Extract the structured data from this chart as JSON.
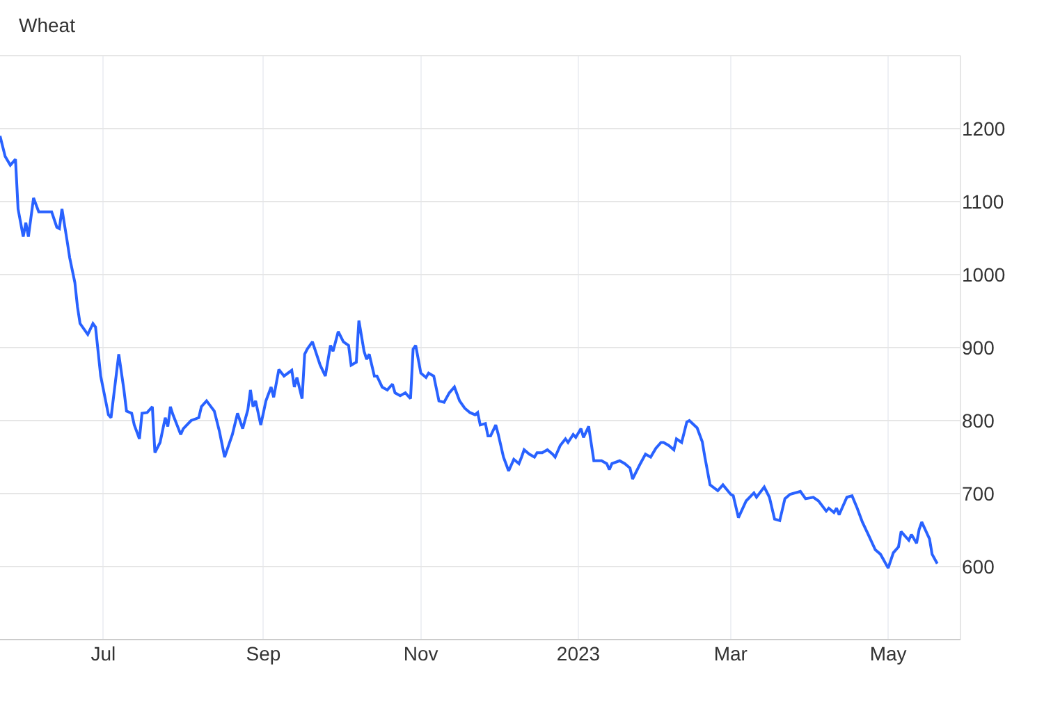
{
  "chart_data": {
    "type": "line",
    "title": "Wheat",
    "x": [
      "2022-05-22",
      "2022-05-24",
      "2022-05-26",
      "2022-05-28",
      "2022-05-29",
      "2022-05-31",
      "2022-06-01",
      "2022-06-02",
      "2022-06-04",
      "2022-06-06",
      "2022-06-11",
      "2022-06-13",
      "2022-06-14",
      "2022-06-15",
      "2022-06-17",
      "2022-06-18",
      "2022-06-20",
      "2022-06-21",
      "2022-06-22",
      "2022-06-25",
      "2022-06-27",
      "2022-06-28",
      "2022-06-30",
      "2022-07-03",
      "2022-07-04",
      "2022-07-07",
      "2022-07-09",
      "2022-07-10",
      "2022-07-12",
      "2022-07-13",
      "2022-07-15",
      "2022-07-16",
      "2022-07-18",
      "2022-07-20",
      "2022-07-21",
      "2022-07-23",
      "2022-07-25",
      "2022-07-26",
      "2022-07-27",
      "2022-07-28",
      "2022-07-31",
      "2022-08-01",
      "2022-08-04",
      "2022-08-07",
      "2022-08-08",
      "2022-08-10",
      "2022-08-13",
      "2022-08-15",
      "2022-08-17",
      "2022-08-20",
      "2022-08-22",
      "2022-08-24",
      "2022-08-26",
      "2022-08-27",
      "2022-08-28",
      "2022-08-29",
      "2022-08-31",
      "2022-09-02",
      "2022-09-04",
      "2022-09-05",
      "2022-09-07",
      "2022-09-09",
      "2022-09-12",
      "2022-09-13",
      "2022-09-14",
      "2022-09-16",
      "2022-09-17",
      "2022-09-18",
      "2022-09-20",
      "2022-09-23",
      "2022-09-25",
      "2022-09-27",
      "2022-09-28",
      "2022-09-30",
      "2022-10-02",
      "2022-10-04",
      "2022-10-05",
      "2022-10-07",
      "2022-10-08",
      "2022-10-10",
      "2022-10-11",
      "2022-10-12",
      "2022-10-14",
      "2022-10-15",
      "2022-10-17",
      "2022-10-19",
      "2022-10-21",
      "2022-10-22",
      "2022-10-24",
      "2022-10-26",
      "2022-10-28",
      "2022-10-29",
      "2022-10-30",
      "2022-11-01",
      "2022-11-03",
      "2022-11-04",
      "2022-11-06",
      "2022-11-08",
      "2022-11-10",
      "2022-11-12",
      "2022-11-13",
      "2022-11-14",
      "2022-11-16",
      "2022-11-18",
      "2022-11-20",
      "2022-11-22",
      "2022-11-23",
      "2022-11-24",
      "2022-11-26",
      "2022-11-27",
      "2022-11-28",
      "2022-11-30",
      "2022-12-01",
      "2022-12-03",
      "2022-12-05",
      "2022-12-07",
      "2022-12-09",
      "2022-12-10",
      "2022-12-11",
      "2022-12-13",
      "2022-12-15",
      "2022-12-16",
      "2022-12-18",
      "2022-12-20",
      "2022-12-22",
      "2022-12-23",
      "2022-12-25",
      "2022-12-27",
      "2022-12-28",
      "2022-12-30",
      "2022-12-31",
      "2023-01-02",
      "2023-01-03",
      "2023-01-05",
      "2023-01-07",
      "2023-01-10",
      "2023-01-12",
      "2023-01-13",
      "2023-01-14",
      "2023-01-17",
      "2023-01-19",
      "2023-01-21",
      "2023-01-22",
      "2023-01-25",
      "2023-01-27",
      "2023-01-29",
      "2023-01-31",
      "2023-02-02",
      "2023-02-03",
      "2023-02-05",
      "2023-02-07",
      "2023-02-08",
      "2023-02-10",
      "2023-02-12",
      "2023-02-13",
      "2023-02-16",
      "2023-02-18",
      "2023-02-19",
      "2023-02-21",
      "2023-02-24",
      "2023-02-26",
      "2023-03-01",
      "2023-03-02",
      "2023-03-04",
      "2023-03-07",
      "2023-03-10",
      "2023-03-11",
      "2023-03-14",
      "2023-03-16",
      "2023-03-18",
      "2023-03-20",
      "2023-03-22",
      "2023-03-24",
      "2023-03-28",
      "2023-03-30",
      "2023-04-02",
      "2023-04-04",
      "2023-04-07",
      "2023-04-08",
      "2023-04-10",
      "2023-04-11",
      "2023-04-12",
      "2023-04-15",
      "2023-04-17",
      "2023-04-19",
      "2023-04-21",
      "2023-04-23",
      "2023-04-26",
      "2023-04-28",
      "2023-05-01",
      "2023-05-03",
      "2023-05-05",
      "2023-05-06",
      "2023-05-09",
      "2023-05-10",
      "2023-05-12",
      "2023-05-13",
      "2023-05-14",
      "2023-05-17",
      "2023-05-18",
      "2023-05-20"
    ],
    "series": [
      {
        "color": "#2962ff",
        "values": [
          1190,
          1162,
          1150,
          1158,
          1090,
          1052,
          1071,
          1052,
          1105,
          1086,
          1086,
          1065,
          1063,
          1090,
          1046,
          1023,
          989,
          956,
          933,
          918,
          933,
          928,
          861,
          808,
          804,
          891,
          842,
          813,
          810,
          794,
          775,
          810,
          811,
          819,
          756,
          770,
          804,
          792,
          819,
          808,
          781,
          789,
          800,
          804,
          819,
          827,
          813,
          785,
          750,
          781,
          810,
          789,
          815,
          842,
          819,
          827,
          794,
          827,
          846,
          832,
          870,
          861,
          869,
          846,
          859,
          830,
          891,
          898,
          908,
          876,
          861,
          903,
          895,
          922,
          908,
          903,
          876,
          880,
          937,
          895,
          884,
          891,
          861,
          861,
          846,
          842,
          850,
          838,
          834,
          838,
          830,
          898,
          903,
          865,
          859,
          865,
          861,
          827,
          825,
          838,
          842,
          846,
          827,
          817,
          811,
          808,
          811,
          794,
          796,
          779,
          779,
          794,
          781,
          750,
          731,
          747,
          741,
          750,
          760,
          754,
          750,
          756,
          756,
          760,
          754,
          750,
          766,
          775,
          770,
          781,
          777,
          789,
          777,
          792,
          745,
          745,
          741,
          733,
          741,
          745,
          741,
          735,
          720,
          741,
          754,
          750,
          762,
          770,
          770,
          766,
          760,
          775,
          770,
          798,
          800,
          790,
          771,
          750,
          712,
          704,
          712,
          699,
          697,
          667,
          690,
          701,
          695,
          709,
          695,
          665,
          663,
          693,
          699,
          703,
          693,
          695,
          690,
          676,
          680,
          674,
          680,
          671,
          695,
          697,
          680,
          661,
          646,
          623,
          617,
          598,
          619,
          627,
          648,
          636,
          644,
          632,
          651,
          661,
          638,
          617,
          604
        ]
      }
    ],
    "xlim": [
      "2022-05-22",
      "2023-05-29"
    ],
    "xticks": [
      {
        "value": "2022-07-01",
        "label": "Jul"
      },
      {
        "value": "2022-09-01",
        "label": "Sep"
      },
      {
        "value": "2022-11-01",
        "label": "Nov"
      },
      {
        "value": "2023-01-01",
        "label": "2023"
      },
      {
        "value": "2023-03-01",
        "label": "Mar"
      },
      {
        "value": "2023-05-01",
        "label": "May"
      }
    ],
    "ylim": [
      500,
      1300
    ],
    "yticks": [
      600,
      700,
      800,
      900,
      1000,
      1100,
      1200
    ],
    "grid": true,
    "marker": "none",
    "line_style": "solid"
  }
}
